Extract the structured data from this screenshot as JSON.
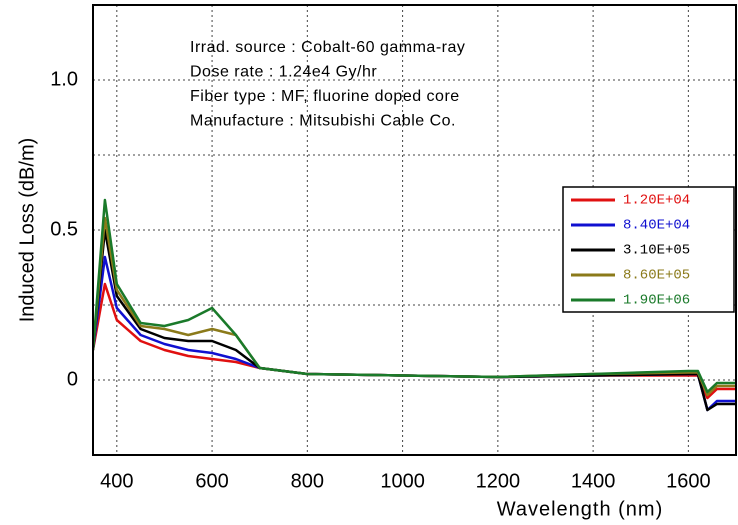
{
  "chart_data": {
    "type": "line",
    "xlabel": "Wavelength (nm)",
    "ylabel": "Induced Loss (dB/m)",
    "annotations": [
      "Irrad. source : Cobalt-60 gamma-ray",
      "Dose rate : 1.24e4 Gy/hr",
      "Fiber type : MF, fluorine doped core",
      "Manufacture : Mitsubishi Cable Co."
    ],
    "x": [
      350,
      375,
      400,
      450,
      500,
      550,
      600,
      650,
      700,
      800,
      1000,
      1200,
      1400,
      1600,
      1620,
      1640,
      1660,
      1700
    ],
    "series": [
      {
        "name": "1.20E+04",
        "color": "#e01010",
        "values": [
          0.1,
          0.32,
          0.2,
          0.13,
          0.1,
          0.08,
          0.07,
          0.06,
          0.04,
          0.02,
          0.015,
          0.01,
          0.015,
          0.015,
          0.015,
          -0.06,
          -0.03,
          -0.03
        ]
      },
      {
        "name": "8.40E+04",
        "color": "#1010d0",
        "values": [
          0.1,
          0.41,
          0.24,
          0.15,
          0.12,
          0.1,
          0.09,
          0.07,
          0.04,
          0.02,
          0.015,
          0.01,
          0.015,
          0.02,
          0.02,
          -0.1,
          -0.07,
          -0.07
        ]
      },
      {
        "name": "3.10E+05",
        "color": "#000000",
        "values": [
          0.1,
          0.5,
          0.28,
          0.17,
          0.14,
          0.13,
          0.13,
          0.1,
          0.04,
          0.02,
          0.015,
          0.01,
          0.015,
          0.02,
          0.02,
          -0.1,
          -0.08,
          -0.08
        ]
      },
      {
        "name": "8.60E+05",
        "color": "#8b7a1a",
        "values": [
          0.1,
          0.54,
          0.3,
          0.18,
          0.17,
          0.15,
          0.17,
          0.15,
          0.04,
          0.02,
          0.015,
          0.01,
          0.02,
          0.025,
          0.025,
          -0.05,
          -0.02,
          -0.02
        ]
      },
      {
        "name": "1.90E+06",
        "color": "#1a7a2a",
        "values": [
          0.1,
          0.6,
          0.32,
          0.19,
          0.18,
          0.2,
          0.24,
          0.15,
          0.04,
          0.02,
          0.015,
          0.01,
          0.02,
          0.03,
          0.03,
          -0.04,
          -0.01,
          -0.01
        ]
      }
    ],
    "xlim": [
      350,
      1700
    ],
    "ylim": [
      -0.25,
      1.25
    ],
    "xticks": [
      400,
      600,
      800,
      1000,
      1200,
      1400,
      1600
    ],
    "yticks": [
      0,
      0.5,
      {
        "value": 1,
        "label": "1.0"
      }
    ],
    "yminor": [
      0.25,
      0.75
    ],
    "grid": true
  }
}
